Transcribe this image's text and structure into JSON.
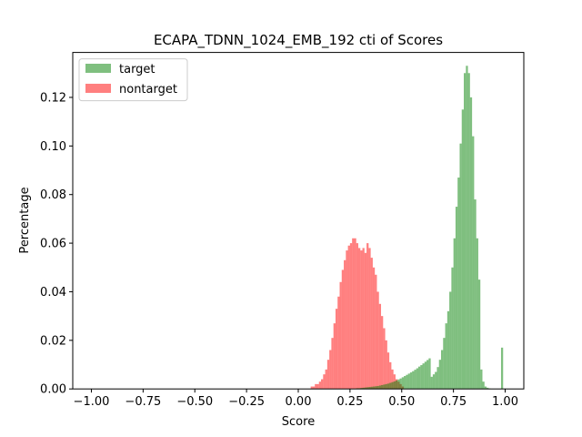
{
  "chart_data": {
    "type": "bar",
    "title": "ECAPA_TDNN_1024_EMB_192 cti of Scores",
    "xlabel": "Score",
    "ylabel": "Percentage",
    "xlim": [
      -1.09,
      1.09
    ],
    "ylim": [
      0,
      0.1385
    ],
    "xticks": [
      -1.0,
      -0.75,
      -0.5,
      -0.25,
      0.0,
      0.25,
      0.5,
      0.75,
      1.0
    ],
    "xtick_labels": [
      "−1.00",
      "−0.75",
      "−0.50",
      "−0.25",
      "0.00",
      "0.25",
      "0.50",
      "0.75",
      "1.00"
    ],
    "yticks": [
      0.0,
      0.02,
      0.04,
      0.06,
      0.08,
      0.1,
      0.12
    ],
    "ytick_labels": [
      "0.00",
      "0.02",
      "0.04",
      "0.06",
      "0.08",
      "0.10",
      "0.12"
    ],
    "legend_position": "top-left",
    "bin_width": 0.01,
    "series": [
      {
        "name": "nontarget",
        "color": "#ff0000",
        "alpha": 0.5,
        "x_start": 0.06,
        "values": [
          0.001,
          0.001,
          0.002,
          0.002,
          0.003,
          0.004,
          0.006,
          0.008,
          0.012,
          0.016,
          0.021,
          0.027,
          0.033,
          0.038,
          0.044,
          0.049,
          0.053,
          0.057,
          0.059,
          0.06,
          0.062,
          0.062,
          0.06,
          0.058,
          0.057,
          0.058,
          0.056,
          0.06,
          0.058,
          0.054,
          0.05,
          0.047,
          0.04,
          0.035,
          0.03,
          0.025,
          0.02,
          0.015,
          0.011,
          0.008,
          0.006,
          0.004,
          0.003,
          0.002,
          0.001
        ]
      },
      {
        "name": "target",
        "color": "#008000",
        "alpha": 0.5,
        "x_start": 0.28,
        "values": [
          0.0003,
          0.0003,
          0.0004,
          0.0005,
          0.0006,
          0.0007,
          0.0008,
          0.0009,
          0.001,
          0.0011,
          0.0012,
          0.0014,
          0.0016,
          0.0018,
          0.002,
          0.0022,
          0.0025,
          0.0028,
          0.0031,
          0.0035,
          0.0039,
          0.0043,
          0.0048,
          0.0053,
          0.0058,
          0.0063,
          0.0068,
          0.0073,
          0.0079,
          0.0085,
          0.0092,
          0.0098,
          0.0105,
          0.0112,
          0.0119,
          0.0126,
          0.005,
          0.006,
          0.007,
          0.009,
          0.012,
          0.016,
          0.021,
          0.027,
          0.032,
          0.04,
          0.05,
          0.062,
          0.075,
          0.087,
          0.101,
          0.115,
          0.13,
          0.133,
          0.13,
          0.12,
          0.104,
          0.078,
          0.062,
          0.045,
          0.008,
          0.003,
          0.001,
          0.0005,
          0.0002,
          0.0001,
          0.0001,
          0.0001,
          0.0001,
          0.0001,
          0.017,
          0.0001
        ]
      }
    ]
  }
}
